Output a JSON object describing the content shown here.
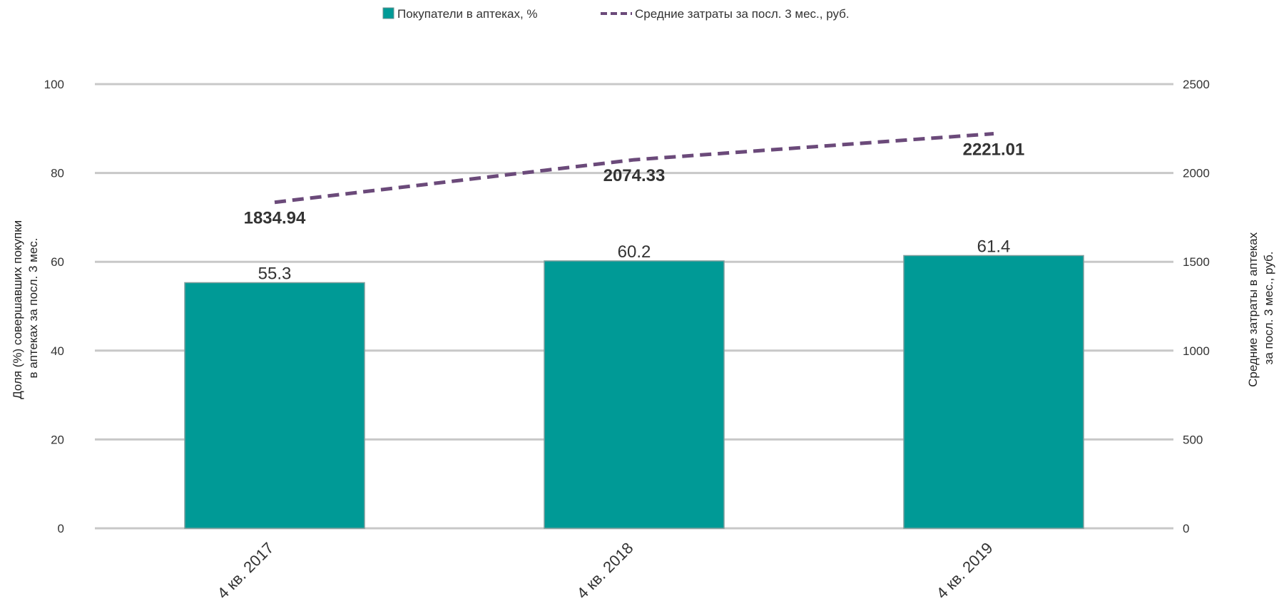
{
  "chart_data": {
    "type": "bar",
    "categories": [
      "4 кв. 2017",
      "4 кв. 2018",
      "4 кв. 2019"
    ],
    "series": [
      {
        "name": "Покупатели в аптеках, %",
        "type": "bar",
        "axis": "left",
        "color": "#009A96",
        "values": [
          55.3,
          60.2,
          61.4
        ],
        "labels": [
          "55.3",
          "60.2",
          "61.4"
        ]
      },
      {
        "name": "Средние затраты за посл. 3 мес., руб.",
        "type": "line",
        "axis": "right",
        "color": "#6B4A7A",
        "dashed": true,
        "values": [
          1834.94,
          2074.33,
          2221.01
        ],
        "labels": [
          "1834.94",
          "2074.33",
          "2221.01"
        ]
      }
    ],
    "y_left": {
      "label_lines": [
        "Доля (%) совершавших покупки",
        "в аптеках за посл. 3 мес."
      ],
      "range": [
        0,
        100
      ],
      "ticks": [
        0,
        20,
        40,
        60,
        80,
        100
      ]
    },
    "y_right": {
      "label_lines": [
        "Средние затраты в аптеках",
        "за посл. 3 мес., руб."
      ],
      "range": [
        0,
        2500
      ],
      "ticks": [
        0,
        500,
        1000,
        1500,
        2000,
        2500
      ]
    },
    "grid": true,
    "legend_position": "top-center",
    "gridline_color": "#C8C8C8"
  }
}
